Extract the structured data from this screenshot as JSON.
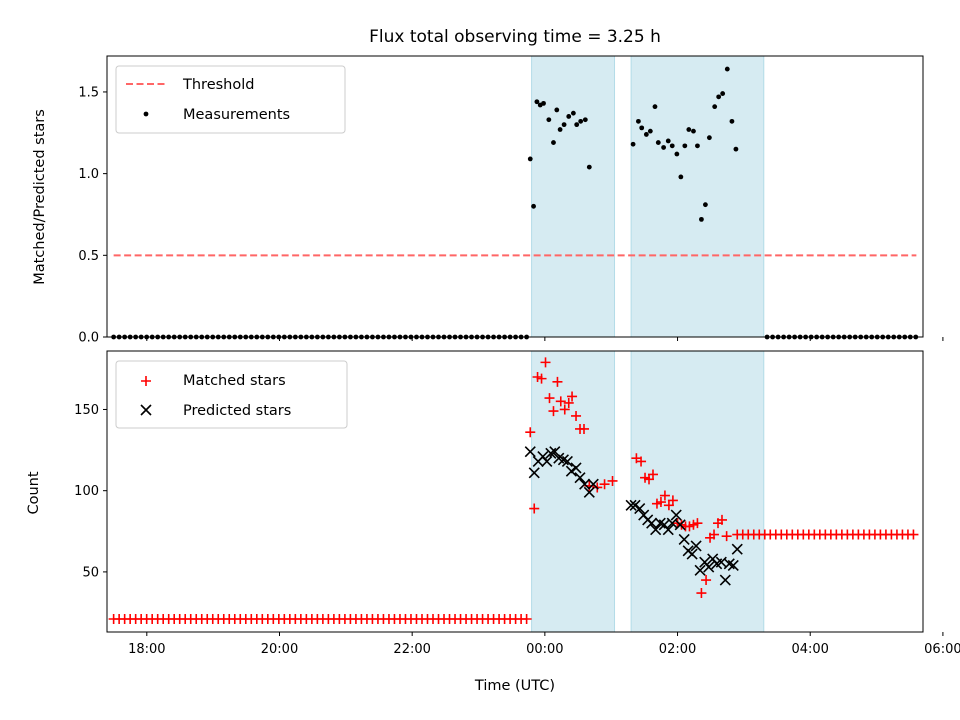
{
  "chart_data": {
    "title": "Flux total observing time = 3.25 h",
    "xlabel": "Time (UTC)",
    "x_unit": "hours since 00:00 UTC",
    "xlim": [
      -6.1,
      6.2
    ],
    "x_ticks": [
      {
        "v": -5.5,
        "label": "18:00"
      },
      {
        "v": -3.5,
        "label": "20:00"
      },
      {
        "v": -1.5,
        "label": "22:00"
      },
      {
        "v": 0.5,
        "label": "00:00"
      },
      {
        "v": 2.5,
        "label": "02:00"
      },
      {
        "v": 4.5,
        "label": "04:00"
      },
      {
        "v": 6.5,
        "label": "06:00"
      }
    ],
    "observing_windows": [
      {
        "x0": 0.3,
        "x1": 1.55,
        "color": "#add8e6"
      },
      {
        "x0": 1.8,
        "x1": 3.8,
        "color": "#add8e6"
      }
    ],
    "top_panel": {
      "type": "scatter",
      "ylabel": "Matched/Predicted stars",
      "ylim": [
        0,
        1.72
      ],
      "y_ticks": [
        {
          "v": 0.0,
          "label": "0.0"
        },
        {
          "v": 0.5,
          "label": "0.5"
        },
        {
          "v": 1.0,
          "label": "1.0"
        },
        {
          "v": 1.5,
          "label": "1.5"
        }
      ],
      "threshold": {
        "label": "Threshold",
        "value": 0.5,
        "x0": -6.0,
        "x1": 6.1,
        "color": "#ff6666"
      },
      "measurements": {
        "label": "Measurements",
        "color": "#000000",
        "zero_segments": [
          {
            "x0": -6.0,
            "x1": 0.25,
            "step": 0.083
          },
          {
            "x0": 3.85,
            "x1": 6.1,
            "step": 0.083
          }
        ],
        "points": [
          [
            0.28,
            1.09
          ],
          [
            0.33,
            0.8
          ],
          [
            0.38,
            1.44
          ],
          [
            0.43,
            1.42
          ],
          [
            0.48,
            1.43
          ],
          [
            0.56,
            1.33
          ],
          [
            0.63,
            1.19
          ],
          [
            0.68,
            1.39
          ],
          [
            0.73,
            1.27
          ],
          [
            0.79,
            1.3
          ],
          [
            0.86,
            1.35
          ],
          [
            0.93,
            1.37
          ],
          [
            0.98,
            1.3
          ],
          [
            1.04,
            1.32
          ],
          [
            1.11,
            1.33
          ],
          [
            1.17,
            1.04
          ],
          [
            1.83,
            1.18
          ],
          [
            1.91,
            1.32
          ],
          [
            1.96,
            1.28
          ],
          [
            2.03,
            1.24
          ],
          [
            2.09,
            1.26
          ],
          [
            2.16,
            1.41
          ],
          [
            2.21,
            1.19
          ],
          [
            2.29,
            1.16
          ],
          [
            2.36,
            1.2
          ],
          [
            2.42,
            1.17
          ],
          [
            2.49,
            1.12
          ],
          [
            2.55,
            0.98
          ],
          [
            2.61,
            1.17
          ],
          [
            2.67,
            1.27
          ],
          [
            2.74,
            1.26
          ],
          [
            2.8,
            1.17
          ],
          [
            2.86,
            0.72
          ],
          [
            2.92,
            0.81
          ],
          [
            2.98,
            1.22
          ],
          [
            3.06,
            1.41
          ],
          [
            3.12,
            1.47
          ],
          [
            3.18,
            1.49
          ],
          [
            3.25,
            1.64
          ],
          [
            3.32,
            1.32
          ],
          [
            3.38,
            1.15
          ]
        ]
      }
    },
    "bottom_panel": {
      "type": "scatter",
      "ylabel": "Count",
      "ylim": [
        13,
        186
      ],
      "y_ticks": [
        {
          "v": 50,
          "label": "50"
        },
        {
          "v": 100,
          "label": "100"
        },
        {
          "v": 150,
          "label": "150"
        }
      ],
      "matched": {
        "label": "Matched stars",
        "color": "#ff0000",
        "segments": [
          {
            "x0": -6.0,
            "x1": 0.25,
            "step": 0.083,
            "value": 21
          },
          {
            "x0": 3.4,
            "x1": 6.1,
            "step": 0.083,
            "value": 73
          }
        ],
        "points": [
          [
            0.28,
            136
          ],
          [
            0.34,
            89
          ],
          [
            0.39,
            170
          ],
          [
            0.45,
            169
          ],
          [
            0.51,
            179
          ],
          [
            0.57,
            157
          ],
          [
            0.63,
            149
          ],
          [
            0.69,
            167
          ],
          [
            0.74,
            155
          ],
          [
            0.8,
            150
          ],
          [
            0.86,
            154
          ],
          [
            0.91,
            158
          ],
          [
            0.97,
            146
          ],
          [
            1.03,
            138
          ],
          [
            1.09,
            138
          ],
          [
            1.17,
            103
          ],
          [
            1.29,
            102
          ],
          [
            1.4,
            104
          ],
          [
            1.52,
            106
          ],
          [
            1.88,
            120
          ],
          [
            1.95,
            118
          ],
          [
            2.01,
            108
          ],
          [
            2.07,
            107
          ],
          [
            2.13,
            110
          ],
          [
            2.19,
            92
          ],
          [
            2.25,
            93
          ],
          [
            2.31,
            97
          ],
          [
            2.37,
            91
          ],
          [
            2.43,
            94
          ],
          [
            2.5,
            80
          ],
          [
            2.56,
            79
          ],
          [
            2.62,
            78
          ],
          [
            2.68,
            78
          ],
          [
            2.74,
            79
          ],
          [
            2.8,
            80
          ],
          [
            2.86,
            37
          ],
          [
            2.93,
            45
          ],
          [
            2.99,
            71
          ],
          [
            3.05,
            73
          ],
          [
            3.11,
            80
          ],
          [
            3.17,
            82
          ],
          [
            3.24,
            72
          ]
        ]
      },
      "predicted": {
        "label": "Predicted stars",
        "color": "#000000",
        "points": [
          [
            0.28,
            124
          ],
          [
            0.34,
            111
          ],
          [
            0.4,
            118
          ],
          [
            0.47,
            121
          ],
          [
            0.53,
            118
          ],
          [
            0.59,
            123
          ],
          [
            0.65,
            124
          ],
          [
            0.71,
            120
          ],
          [
            0.78,
            119
          ],
          [
            0.84,
            118
          ],
          [
            0.9,
            112
          ],
          [
            0.97,
            114
          ],
          [
            1.03,
            108
          ],
          [
            1.1,
            104
          ],
          [
            1.17,
            99
          ],
          [
            1.23,
            104
          ],
          [
            1.8,
            91
          ],
          [
            1.86,
            91
          ],
          [
            1.93,
            89
          ],
          [
            1.99,
            85
          ],
          [
            2.05,
            82
          ],
          [
            2.11,
            80
          ],
          [
            2.17,
            76
          ],
          [
            2.24,
            80
          ],
          [
            2.3,
            79
          ],
          [
            2.36,
            76
          ],
          [
            2.42,
            80
          ],
          [
            2.48,
            85
          ],
          [
            2.54,
            79
          ],
          [
            2.6,
            70
          ],
          [
            2.66,
            63
          ],
          [
            2.72,
            61
          ],
          [
            2.78,
            66
          ],
          [
            2.84,
            51
          ],
          [
            2.91,
            56
          ],
          [
            2.97,
            53
          ],
          [
            3.03,
            58
          ],
          [
            3.09,
            55
          ],
          [
            3.16,
            56
          ],
          [
            3.22,
            45
          ],
          [
            3.28,
            55
          ],
          [
            3.34,
            54
          ],
          [
            3.4,
            64
          ]
        ]
      }
    }
  }
}
